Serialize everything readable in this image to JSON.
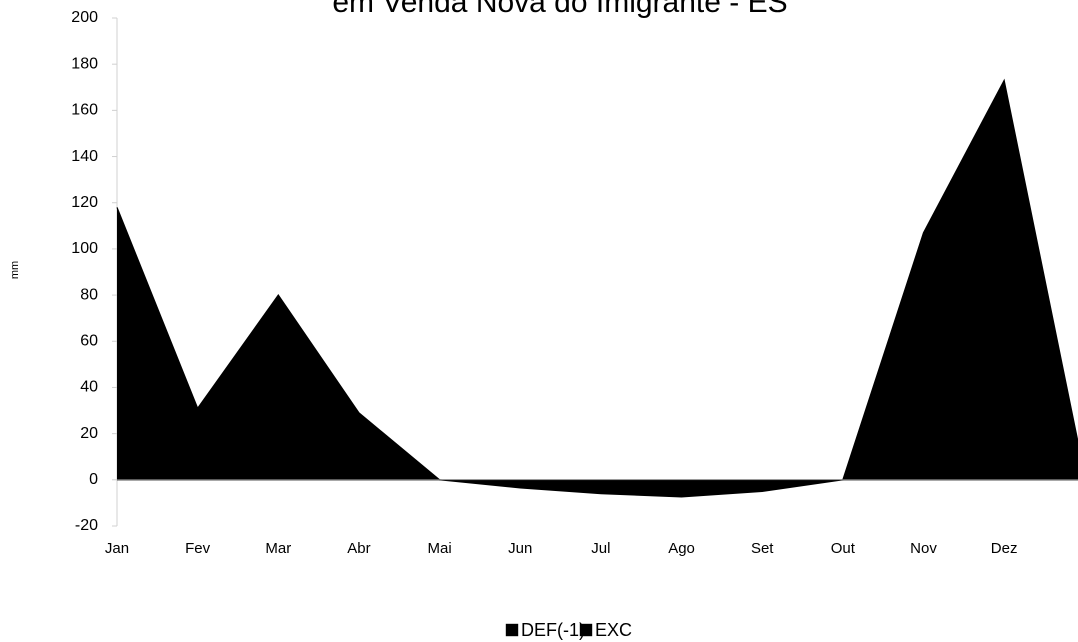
{
  "chart_data": {
    "type": "area",
    "title": "em Venda Nova do Imigrante - ES",
    "y_label": "mm",
    "categories": [
      "Jan",
      "Fev",
      "Mar",
      "Abr",
      "Mai",
      "Jun",
      "Jul",
      "Ago",
      "Set",
      "Out",
      "Nov",
      "Dez",
      null
    ],
    "series": [
      {
        "name": "DEF(-1)",
        "color": "#ff1a1a",
        "values": [
          0,
          0,
          0,
          0,
          0,
          -3.5,
          -6,
          -7.4,
          -5,
          0,
          0,
          0,
          0
        ]
      },
      {
        "name": "EXC",
        "color": "#3333ee",
        "values": [
          118,
          31,
          80,
          29,
          0,
          0,
          0,
          0,
          0,
          0,
          107,
          173,
          2
        ]
      }
    ],
    "ylim": [
      -20,
      200
    ],
    "yticks": [
      -20,
      0,
      20,
      40,
      60,
      80,
      100,
      120,
      140,
      160,
      180,
      200
    ],
    "grid": false,
    "legend": "bottom"
  }
}
